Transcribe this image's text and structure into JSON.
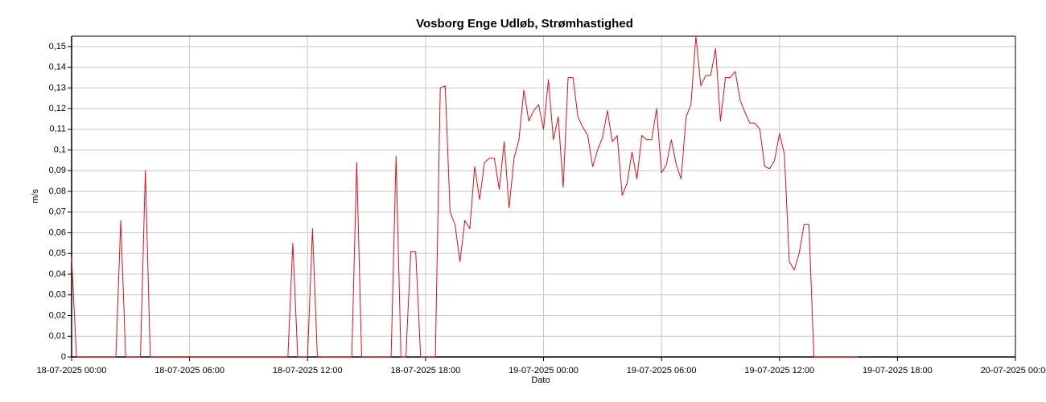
{
  "chart_data": {
    "type": "line",
    "title": "Vosborg Enge Udløb, Strømhastighed",
    "x_label": "Dato",
    "y_label": "m/s",
    "grid": true,
    "xlim": [
      "2025-07-18T00:00",
      "2025-07-20T00:00"
    ],
    "xticks": [
      {
        "value": "2025-07-18T00:00",
        "label": "18-07-2025 00:00"
      },
      {
        "value": "2025-07-18T06:00",
        "label": "18-07-2025 06:00"
      },
      {
        "value": "2025-07-18T12:00",
        "label": "18-07-2025 12:00"
      },
      {
        "value": "2025-07-18T18:00",
        "label": "18-07-2025 18:00"
      },
      {
        "value": "2025-07-19T00:00",
        "label": "19-07-2025 00:00"
      },
      {
        "value": "2025-07-19T06:00",
        "label": "19-07-2025 06:00"
      },
      {
        "value": "2025-07-19T12:00",
        "label": "19-07-2025 12:00"
      },
      {
        "value": "2025-07-19T18:00",
        "label": "19-07-2025 18:00"
      },
      {
        "value": "2025-07-20T00:00",
        "label": "20-07-2025 00:00"
      }
    ],
    "ylim": [
      0,
      0.155
    ],
    "yticks": [
      0,
      {
        "value": 0.01,
        "label": "0,01"
      },
      {
        "value": 0.02,
        "label": "0,02"
      },
      {
        "value": 0.03,
        "label": "0,03"
      },
      {
        "value": 0.04,
        "label": "0,04"
      },
      {
        "value": 0.05,
        "label": "0,05"
      },
      {
        "value": 0.06,
        "label": "0,06"
      },
      {
        "value": 0.07,
        "label": "0,07"
      },
      {
        "value": 0.08,
        "label": "0,08"
      },
      {
        "value": 0.09,
        "label": "0,09"
      },
      {
        "value": 0.1,
        "label": "0,1"
      },
      {
        "value": 0.11,
        "label": "0,11"
      },
      {
        "value": 0.12,
        "label": "0,12"
      },
      {
        "value": 0.13,
        "label": "0,13"
      },
      {
        "value": 0.14,
        "label": "0,14"
      },
      {
        "value": 0.15,
        "label": "0,15"
      }
    ],
    "x": [
      "2025-07-18T00:00",
      "2025-07-18T00:15",
      "2025-07-18T02:15",
      "2025-07-18T02:30",
      "2025-07-18T02:45",
      "2025-07-18T03:30",
      "2025-07-18T03:45",
      "2025-07-18T04:00",
      "2025-07-18T11:00",
      "2025-07-18T11:15",
      "2025-07-18T11:30",
      "2025-07-18T12:00",
      "2025-07-18T12:15",
      "2025-07-18T12:30",
      "2025-07-18T14:15",
      "2025-07-18T14:30",
      "2025-07-18T14:45",
      "2025-07-18T16:15",
      "2025-07-18T16:30",
      "2025-07-18T16:45",
      "2025-07-18T17:00",
      "2025-07-18T17:15",
      "2025-07-18T17:30",
      "2025-07-18T17:45",
      "2025-07-18T18:30",
      "2025-07-18T18:45",
      "2025-07-18T19:00",
      "2025-07-18T19:15",
      "2025-07-18T19:30",
      "2025-07-18T19:45",
      "2025-07-18T20:00",
      "2025-07-18T20:15",
      "2025-07-18T20:30",
      "2025-07-18T20:45",
      "2025-07-18T21:00",
      "2025-07-18T21:15",
      "2025-07-18T21:30",
      "2025-07-18T21:45",
      "2025-07-18T22:00",
      "2025-07-18T22:15",
      "2025-07-18T22:30",
      "2025-07-18T22:45",
      "2025-07-18T23:00",
      "2025-07-18T23:15",
      "2025-07-18T23:30",
      "2025-07-18T23:45",
      "2025-07-19T00:00",
      "2025-07-19T00:15",
      "2025-07-19T00:30",
      "2025-07-19T00:45",
      "2025-07-19T01:00",
      "2025-07-19T01:15",
      "2025-07-19T01:30",
      "2025-07-19T01:45",
      "2025-07-19T02:00",
      "2025-07-19T02:15",
      "2025-07-19T02:30",
      "2025-07-19T02:45",
      "2025-07-19T03:00",
      "2025-07-19T03:15",
      "2025-07-19T03:30",
      "2025-07-19T03:45",
      "2025-07-19T04:00",
      "2025-07-19T04:15",
      "2025-07-19T04:30",
      "2025-07-19T04:45",
      "2025-07-19T05:00",
      "2025-07-19T05:15",
      "2025-07-19T05:30",
      "2025-07-19T05:45",
      "2025-07-19T06:00",
      "2025-07-19T06:15",
      "2025-07-19T06:30",
      "2025-07-19T06:45",
      "2025-07-19T07:00",
      "2025-07-19T07:15",
      "2025-07-19T07:30",
      "2025-07-19T07:45",
      "2025-07-19T08:00",
      "2025-07-19T08:15",
      "2025-07-19T08:30",
      "2025-07-19T08:45",
      "2025-07-19T09:00",
      "2025-07-19T09:15",
      "2025-07-19T09:30",
      "2025-07-19T09:45",
      "2025-07-19T10:00",
      "2025-07-19T10:15",
      "2025-07-19T10:30",
      "2025-07-19T10:45",
      "2025-07-19T11:00",
      "2025-07-19T11:15",
      "2025-07-19T11:30",
      "2025-07-19T11:45",
      "2025-07-19T12:00",
      "2025-07-19T12:15",
      "2025-07-19T12:30",
      "2025-07-19T12:45",
      "2025-07-19T13:00",
      "2025-07-19T13:15",
      "2025-07-19T13:30",
      "2025-07-19T13:45",
      "2025-07-19T16:00"
    ],
    "series": [
      {
        "color": "#e0101a",
        "values": [
          0.048,
          0,
          0,
          0.066,
          0,
          0,
          0.09,
          0,
          0,
          0.055,
          0,
          0,
          0.062,
          0,
          0,
          0.094,
          0,
          0,
          0.097,
          0,
          0,
          0.051,
          0.051,
          0,
          0,
          0.13,
          0.131,
          0.07,
          0.064,
          0.046,
          0.066,
          0.062,
          0.092,
          0.076,
          0.094,
          0.096,
          0.096,
          0.081,
          0.104,
          0.072,
          0.096,
          0.105,
          0.129,
          0.114,
          0.119,
          0.122,
          0.11,
          0.134,
          0.105,
          0.116,
          0.082,
          0.135,
          0.135,
          0.116,
          0.111,
          0.107,
          0.092,
          0.1,
          0.106,
          0.119,
          0.104,
          0.107,
          0.078,
          0.084,
          0.099,
          0.086,
          0.107,
          0.105,
          0.105,
          0.12,
          0.089,
          0.093,
          0.105,
          0.093,
          0.086,
          0.116,
          0.122,
          0.155,
          0.131,
          0.136,
          0.136,
          0.149,
          0.114,
          0.135,
          0.135,
          0.138,
          0.124,
          0.118,
          0.113,
          0.113,
          0.11,
          0.092,
          0.091,
          0.095,
          0.108,
          0.098,
          0.046,
          0.042,
          0.05,
          0.064,
          0.064,
          0,
          0
        ]
      }
    ]
  }
}
